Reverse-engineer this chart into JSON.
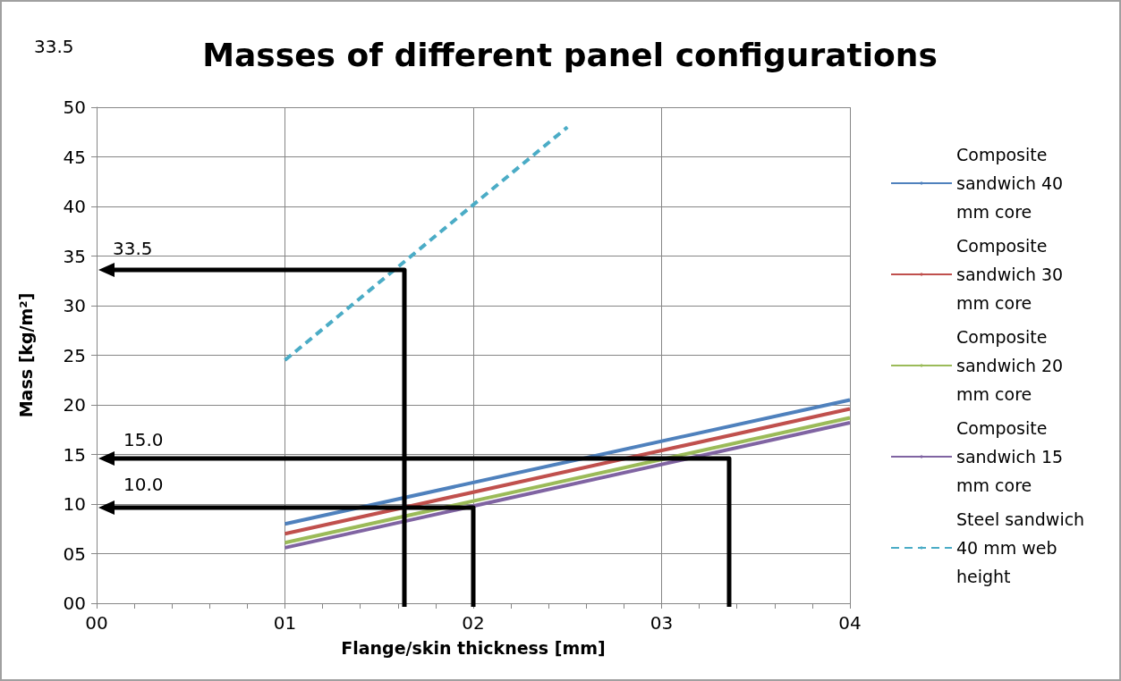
{
  "chart_data": {
    "type": "line",
    "title": "Masses of different panel configurations",
    "xlabel": "Flange/skin thickness [mm]",
    "ylabel": "Mass [kg/m²]",
    "xlim": [
      0,
      4
    ],
    "ylim": [
      0,
      50
    ],
    "xticks": [
      {
        "value": 0,
        "label": "00"
      },
      {
        "value": 1,
        "label": "01"
      },
      {
        "value": 2,
        "label": "02"
      },
      {
        "value": 3,
        "label": "03"
      },
      {
        "value": 4,
        "label": "04"
      }
    ],
    "yticks": [
      {
        "value": 0,
        "label": "00"
      },
      {
        "value": 5,
        "label": "05"
      },
      10,
      15,
      20,
      25,
      30,
      35,
      40,
      45,
      50
    ],
    "grid": true,
    "legend": "right",
    "marker": "none",
    "series": [
      {
        "name": "Composite sandwich 40 mm core",
        "color": "#4f81bd",
        "x": [
          1,
          4
        ],
        "values": [
          8.0,
          20.5
        ]
      },
      {
        "name": "Composite sandwich 30 mm core",
        "color": "#c0504d",
        "x": [
          1,
          4
        ],
        "values": [
          7.0,
          19.6
        ]
      },
      {
        "name": "Composite sandwich 20 mm core",
        "color": "#9bbb59",
        "x": [
          1,
          4
        ],
        "values": [
          6.1,
          18.7
        ]
      },
      {
        "name": "Composite sandwich 15 mm core",
        "color": "#8064a2",
        "x": [
          1,
          4
        ],
        "values": [
          5.6,
          18.2
        ]
      },
      {
        "name": "Steel sandwich 40 mm web height",
        "color": "#4bacc6",
        "line_style": "dashed",
        "x": [
          1,
          2.5
        ],
        "values": [
          24.5,
          48.0
        ]
      }
    ],
    "annotations": [
      "33.5",
      "33.5",
      "15.0",
      "10.0"
    ]
  }
}
